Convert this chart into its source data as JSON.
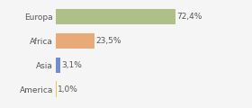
{
  "categories": [
    "America",
    "Asia",
    "Africa",
    "Europa"
  ],
  "values": [
    1.0,
    3.1,
    23.5,
    72.4
  ],
  "labels": [
    "1,0%",
    "3,1%",
    "23,5%",
    "72,4%"
  ],
  "bar_colors": [
    "#e8c84a",
    "#6e8fc9",
    "#e8aa78",
    "#aec088"
  ],
  "background_color": "#f5f5f5",
  "xlim": [
    0,
    100
  ],
  "label_fontsize": 6.5,
  "tick_fontsize": 6.5,
  "bar_height": 0.65,
  "grid_color": "#d8d8d8",
  "text_color": "#555555"
}
